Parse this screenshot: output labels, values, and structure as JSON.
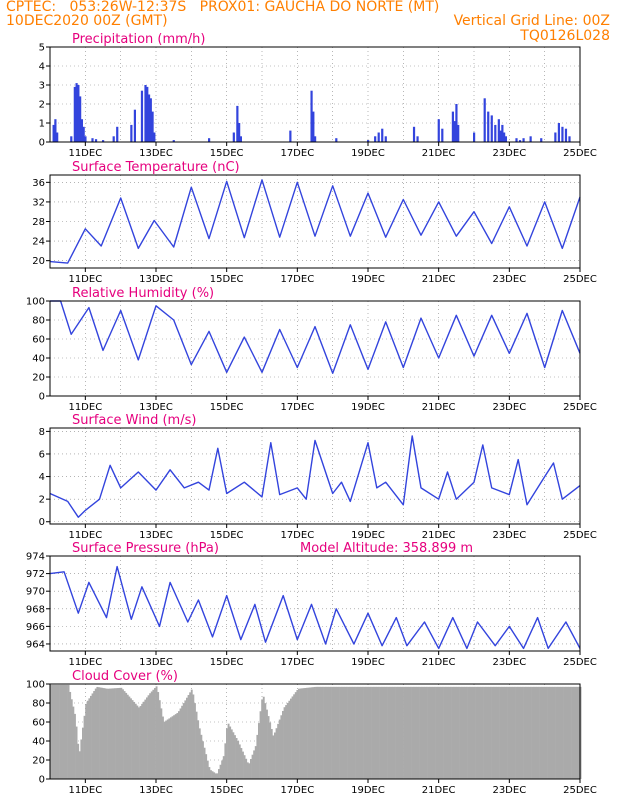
{
  "header": {
    "line1_left": "CPTEC:   053:26W-12:37S   PROX01: GAUCHA DO NORTE (MT)",
    "line2_left": "10DEC2020 00Z (GMT)",
    "line2_right": "Vertical Grid Line: 00Z",
    "line3_right": "TQ0126L028"
  },
  "colors": {
    "header": "#ff7f00",
    "title": "#e6007e",
    "series": "#3344dd",
    "cloud": "#aaaaaa"
  },
  "chart_data": [
    {
      "id": "precip",
      "type": "bar",
      "title": "Precipitation (mm/h)",
      "ylim": [
        0,
        5
      ],
      "yticks": [
        "0",
        "1",
        "2",
        "3",
        "4",
        "5"
      ],
      "xticks": [
        "11DEC",
        "13DEC",
        "15DEC",
        "17DEC",
        "19DEC",
        "21DEC",
        "23DEC",
        "25DEC"
      ],
      "show_xtick_labels": true,
      "x": [
        0.1,
        0.15,
        0.2,
        0.6,
        0.7,
        0.75,
        0.8,
        0.85,
        0.9,
        0.95,
        1.0,
        1.2,
        1.3,
        1.5,
        1.8,
        1.9,
        2.3,
        2.4,
        2.6,
        2.7,
        2.75,
        2.8,
        2.85,
        2.9,
        2.95,
        3.5,
        4.5,
        5.2,
        5.3,
        5.35,
        5.4,
        6.8,
        7.4,
        7.45,
        7.5,
        8.1,
        9.0,
        9.2,
        9.3,
        9.4,
        9.5,
        10.3,
        10.4,
        11.0,
        11.1,
        11.4,
        11.45,
        11.5,
        11.55,
        12.0,
        12.3,
        12.4,
        12.5,
        12.6,
        12.7,
        12.75,
        12.8,
        12.85,
        12.9,
        13.2,
        13.3,
        13.4,
        13.6,
        13.9,
        14.3,
        14.4,
        14.5,
        14.6,
        14.7
      ],
      "values": [
        0.9,
        1.2,
        0.5,
        0.3,
        2.9,
        3.1,
        3.0,
        2.4,
        1.2,
        0.8,
        0.3,
        0.2,
        0.15,
        0.1,
        0.3,
        0.8,
        0.9,
        1.7,
        2.7,
        3.0,
        2.9,
        2.5,
        2.3,
        1.6,
        0.5,
        0.1,
        0.2,
        0.5,
        1.9,
        1.0,
        0.3,
        0.6,
        2.7,
        1.6,
        0.3,
        0.2,
        0.1,
        0.3,
        0.5,
        0.7,
        0.3,
        0.8,
        0.3,
        1.2,
        0.7,
        1.6,
        1.1,
        2.0,
        0.9,
        0.5,
        2.3,
        1.6,
        1.4,
        0.9,
        1.2,
        0.6,
        0.9,
        0.5,
        0.3,
        0.2,
        0.1,
        0.2,
        0.3,
        0.2,
        0.5,
        1.0,
        0.8,
        0.7,
        0.3
      ]
    },
    {
      "id": "temp",
      "type": "line",
      "title": "Surface Temperature (nC)",
      "ylim": [
        18.5,
        37.5
      ],
      "yticks": [
        "20",
        "24",
        "28",
        "32",
        "36"
      ],
      "ytick_values": [
        20,
        24,
        28,
        32,
        36
      ],
      "xticks": [
        "11DEC",
        "13DEC",
        "15DEC",
        "17DEC",
        "19DEC",
        "21DEC",
        "23DEC",
        "25DEC"
      ],
      "show_xtick_labels": true,
      "daily_min": [
        19.5,
        22.5,
        22.8,
        24.5,
        24.7,
        24.8,
        25.0,
        25.0,
        24.8,
        25.2,
        25.0,
        23.5,
        23.0,
        22.5,
        22.4
      ],
      "daily_max": [
        26.5,
        32.8,
        28.3,
        35.0,
        36.2,
        36.5,
        36.0,
        35.3,
        33.8,
        32.5,
        32.0,
        30.0,
        31.0,
        32.0,
        33.0,
        33.0
      ],
      "x": [
        0,
        0.5,
        1.0,
        1.45,
        2.0,
        2.5,
        2.95,
        3.5,
        4.0,
        4.5,
        5.0,
        5.5,
        6.0,
        6.5,
        7.0,
        7.5,
        8.0,
        8.5,
        9.0,
        9.5,
        10.0,
        10.5,
        11.0,
        11.5,
        12.0,
        12.5,
        13.0,
        13.5,
        14.0,
        14.5,
        15.0
      ],
      "values": [
        19.8,
        19.5,
        26.5,
        23.0,
        32.8,
        22.5,
        28.2,
        22.8,
        35.0,
        24.5,
        36.2,
        24.7,
        36.5,
        24.8,
        36.0,
        25.0,
        35.3,
        25.0,
        33.8,
        24.8,
        32.5,
        25.2,
        32.0,
        25.0,
        30.0,
        23.5,
        31.0,
        23.0,
        32.0,
        22.5,
        33.0
      ]
    },
    {
      "id": "rh",
      "type": "line",
      "title": "Relative Humidity (%)",
      "ylim": [
        0,
        100
      ],
      "yticks": [
        "0",
        "20",
        "40",
        "60",
        "80",
        "100"
      ],
      "ytick_values": [
        0,
        20,
        40,
        60,
        80,
        100
      ],
      "xticks": [
        "11DEC",
        "13DEC",
        "15DEC",
        "17DEC",
        "19DEC",
        "21DEC",
        "23DEC",
        "25DEC"
      ],
      "show_xtick_labels": true,
      "x": [
        0,
        0.3,
        0.6,
        1.1,
        1.5,
        2.0,
        2.5,
        3.0,
        3.5,
        4.0,
        4.5,
        5.0,
        5.5,
        6.0,
        6.5,
        7.0,
        7.5,
        8.0,
        8.5,
        9.0,
        9.5,
        10.0,
        10.5,
        11.0,
        11.5,
        12.0,
        12.5,
        13.0,
        13.5,
        14.0,
        14.5,
        15.0
      ],
      "values": [
        100,
        100,
        65,
        93,
        48,
        90,
        38,
        95,
        80,
        33,
        68,
        25,
        62,
        25,
        70,
        30,
        73,
        24,
        75,
        28,
        78,
        30,
        82,
        40,
        85,
        42,
        85,
        45,
        87,
        30,
        90,
        45
      ]
    },
    {
      "id": "wind",
      "type": "line",
      "title": "Surface Wind (m/s)",
      "ylim": [
        -0.2,
        8.3
      ],
      "yticks": [
        "0",
        "2",
        "4",
        "6",
        "8"
      ],
      "ytick_values": [
        0,
        2,
        4,
        6,
        8
      ],
      "xticks": [
        "11DEC",
        "13DEC",
        "15DEC",
        "17DEC",
        "19DEC",
        "21DEC",
        "23DEC",
        "25DEC"
      ],
      "show_xtick_labels": true,
      "x": [
        0,
        0.5,
        0.8,
        1.0,
        1.4,
        1.7,
        2.0,
        2.5,
        3.0,
        3.4,
        3.8,
        4.2,
        4.5,
        4.75,
        5.0,
        5.5,
        6.0,
        6.25,
        6.5,
        7.0,
        7.25,
        7.5,
        8.0,
        8.25,
        8.5,
        9.0,
        9.25,
        9.5,
        10.0,
        10.25,
        10.5,
        11.0,
        11.25,
        11.5,
        12.0,
        12.25,
        12.5,
        13.0,
        13.25,
        13.5,
        14.0,
        14.25,
        14.5,
        15.0
      ],
      "values": [
        2.5,
        1.8,
        0.4,
        1.0,
        2.0,
        5.0,
        3.0,
        4.4,
        2.8,
        4.6,
        3.0,
        3.5,
        2.8,
        6.5,
        2.5,
        3.5,
        2.2,
        7.0,
        2.4,
        3.0,
        2.0,
        7.2,
        2.5,
        3.5,
        1.8,
        7.0,
        3.0,
        3.5,
        1.5,
        7.6,
        3.0,
        2.0,
        4.4,
        2.0,
        3.5,
        6.8,
        3.0,
        2.4,
        5.5,
        1.5,
        4.0,
        5.2,
        2.0,
        3.2
      ]
    },
    {
      "id": "pressure",
      "type": "line",
      "title": "Surface Pressure (hPa)",
      "annotation": "Model Altitude: 358.899 m",
      "ylim": [
        963.2,
        974.0
      ],
      "yticks": [
        "964",
        "966",
        "968",
        "970",
        "972",
        "974"
      ],
      "ytick_values": [
        964,
        966,
        968,
        970,
        972,
        974
      ],
      "xticks": [
        "11DEC",
        "13DEC",
        "15DEC",
        "17DEC",
        "19DEC",
        "21DEC",
        "23DEC",
        "25DEC"
      ],
      "show_xtick_labels": true,
      "x": [
        0,
        0.4,
        0.8,
        1.1,
        1.6,
        1.9,
        2.3,
        2.6,
        3.1,
        3.4,
        3.9,
        4.2,
        4.6,
        5.0,
        5.4,
        5.8,
        6.1,
        6.6,
        7.0,
        7.4,
        7.8,
        8.1,
        8.6,
        9.0,
        9.4,
        9.8,
        10.1,
        10.6,
        11.0,
        11.4,
        11.8,
        12.1,
        12.6,
        13.0,
        13.4,
        13.8,
        14.1,
        14.6,
        15.0
      ],
      "values": [
        972.0,
        972.2,
        967.5,
        971.0,
        967.0,
        972.8,
        966.8,
        970.5,
        966.0,
        971.0,
        966.5,
        969.0,
        964.8,
        969.5,
        964.5,
        968.5,
        964.2,
        969.5,
        964.5,
        968.5,
        964.0,
        968.0,
        964.0,
        967.5,
        963.8,
        967.0,
        963.8,
        966.5,
        963.5,
        967.0,
        963.5,
        966.5,
        963.8,
        966.0,
        963.5,
        967.0,
        963.5,
        966.5,
        963.5
      ]
    },
    {
      "id": "cloud",
      "type": "area",
      "title": "Cloud Cover (%)",
      "ylim": [
        0,
        100
      ],
      "yticks": [
        "0",
        "20",
        "40",
        "60",
        "80",
        "100"
      ],
      "ytick_values": [
        0,
        20,
        40,
        60,
        80,
        100
      ],
      "xticks": [
        "11DEC",
        "13DEC",
        "15DEC",
        "17DEC",
        "19DEC",
        "21DEC",
        "23DEC",
        "25DEC"
      ],
      "show_xtick_labels": true,
      "x": [
        0,
        0.5,
        0.7,
        0.8,
        1.0,
        1.3,
        1.6,
        2.0,
        2.5,
        2.8,
        3.0,
        3.2,
        3.6,
        4.0,
        4.2,
        4.5,
        4.7,
        4.9,
        5.0,
        5.3,
        5.6,
        5.8,
        6.0,
        6.3,
        6.6,
        7.0,
        7.5,
        8.0,
        8.5,
        9.0,
        9.5,
        10.0,
        10.5,
        11.0,
        11.5,
        12.0,
        12.5,
        13.0,
        13.5,
        14.0,
        14.5,
        15.0
      ],
      "values": [
        99,
        99,
        65,
        25,
        80,
        97,
        95,
        96,
        75,
        90,
        98,
        60,
        70,
        95,
        55,
        10,
        5,
        25,
        60,
        40,
        15,
        35,
        90,
        45,
        75,
        95,
        97,
        97,
        97,
        97,
        97,
        97,
        97,
        97,
        97,
        97,
        97,
        97,
        97,
        97,
        97,
        97
      ]
    }
  ]
}
